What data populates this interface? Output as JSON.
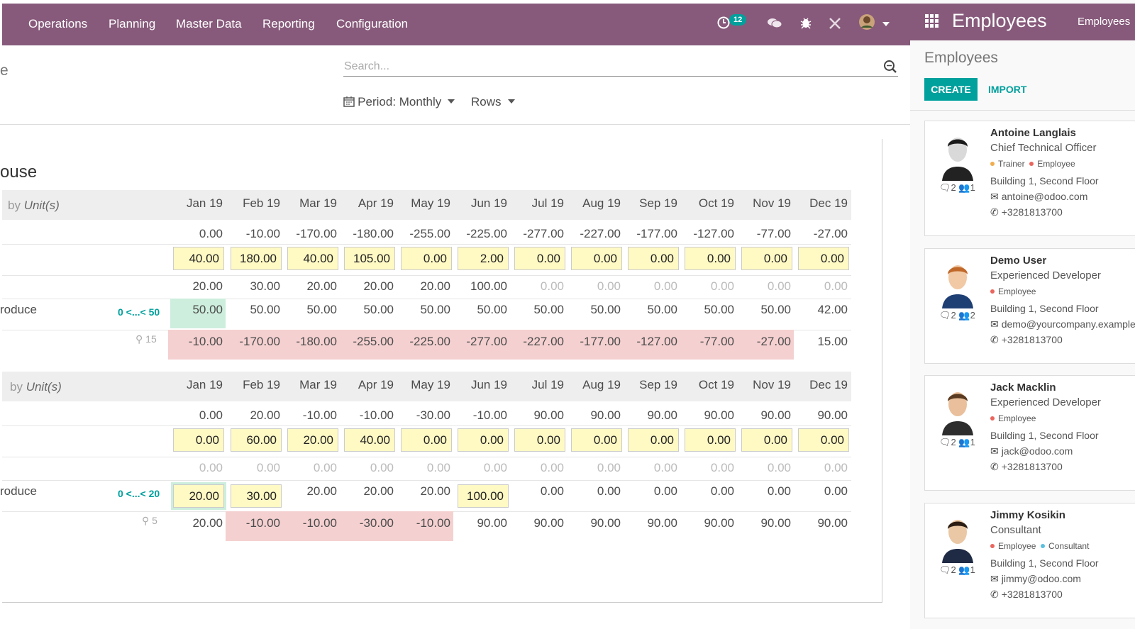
{
  "topnav": {
    "menus": [
      "Operations",
      "Planning",
      "Master Data",
      "Reporting",
      "Configuration"
    ],
    "activity_count": "12"
  },
  "control": {
    "search_placeholder": "Search...",
    "period_label": "Period: Monthly",
    "rows_label": "Rows",
    "left_cut_text": "e"
  },
  "planner": {
    "warehouse_title": "ouse",
    "months": [
      "Jan 19",
      "Feb 19",
      "Mar 19",
      "Apr 19",
      "May 19",
      "Jun 19",
      "Jul 19",
      "Aug 19",
      "Sep 19",
      "Oct 19",
      "Nov 19",
      "Dec 19"
    ],
    "blocks": [
      {
        "uom_prefix": "by",
        "uom_label": "Unit(s)",
        "forecast_row": [
          "0.00",
          "-10.00",
          "-170.00",
          "-180.00",
          "-255.00",
          "-225.00",
          "-277.00",
          "-227.00",
          "-177.00",
          "-127.00",
          "-77.00",
          "-27.00"
        ],
        "demand_row": [
          "40.00",
          "180.00",
          "40.00",
          "105.00",
          "0.00",
          "2.00",
          "0.00",
          "0.00",
          "0.00",
          "0.00",
          "0.00",
          "0.00"
        ],
        "indirect_row": [
          "20.00",
          "30.00",
          "20.00",
          "20.00",
          "20.00",
          "100.00",
          "0.00",
          "0.00",
          "0.00",
          "0.00",
          "0.00",
          "0.00"
        ],
        "produce_label": "roduce",
        "minmax": "0 <...< 50",
        "produce_row": [
          "50.00",
          "50.00",
          "50.00",
          "50.00",
          "50.00",
          "50.00",
          "50.00",
          "50.00",
          "50.00",
          "50.00",
          "50.00",
          "42.00"
        ],
        "safety_value": "15",
        "stock_row": [
          "-10.00",
          "-170.00",
          "-180.00",
          "-255.00",
          "-225.00",
          "-277.00",
          "-227.00",
          "-177.00",
          "-127.00",
          "-77.00",
          "-27.00",
          "15.00"
        ]
      },
      {
        "uom_prefix": "by",
        "uom_label": "Unit(s)",
        "forecast_row": [
          "0.00",
          "20.00",
          "-10.00",
          "-10.00",
          "-30.00",
          "-10.00",
          "90.00",
          "90.00",
          "90.00",
          "90.00",
          "90.00",
          "90.00"
        ],
        "demand_row": [
          "0.00",
          "60.00",
          "20.00",
          "40.00",
          "0.00",
          "0.00",
          "0.00",
          "0.00",
          "0.00",
          "0.00",
          "0.00",
          "0.00"
        ],
        "indirect_row": [
          "0.00",
          "0.00",
          "0.00",
          "0.00",
          "0.00",
          "0.00",
          "0.00",
          "0.00",
          "0.00",
          "0.00",
          "0.00",
          "0.00"
        ],
        "produce_label": "roduce",
        "minmax": "0 <...< 20",
        "produce_row": [
          "20.00",
          "30.00",
          "20.00",
          "20.00",
          "20.00",
          "100.00",
          "0.00",
          "0.00",
          "0.00",
          "0.00",
          "0.00",
          "0.00"
        ],
        "safety_value": "5",
        "stock_row": [
          "20.00",
          "-10.00",
          "-10.00",
          "-30.00",
          "-10.00",
          "90.00",
          "90.00",
          "90.00",
          "90.00",
          "90.00",
          "90.00",
          "90.00"
        ]
      }
    ]
  },
  "right": {
    "app_title": "Employees",
    "menu_first": "Employees",
    "breadcrumb": "Employees",
    "create_label": "CREATE",
    "import_label": "IMPORT",
    "employees": [
      {
        "name": "Antoine Langlais",
        "job": "Chief Technical Officer",
        "tags": [
          "Trainer",
          "Employee"
        ],
        "location": "Building 1, Second Floor",
        "email": "antoine@odoo.com",
        "phone": "+3281813700",
        "messages": "2",
        "followers": "1"
      },
      {
        "name": "Demo User",
        "job": "Experienced Developer",
        "tags": [
          "Employee"
        ],
        "location": "Building 1, Second Floor",
        "email": "demo@yourcompany.example",
        "phone": "+3281813700",
        "messages": "2",
        "followers": "2"
      },
      {
        "name": "Jack Macklin",
        "job": "Experienced Developer",
        "tags": [
          "Employee"
        ],
        "location": "Building 1, Second Floor",
        "email": "jack@odoo.com",
        "phone": "+3281813700",
        "messages": "2",
        "followers": "1"
      },
      {
        "name": "Jimmy Kosikin",
        "job": "Consultant",
        "tags": [
          "Employee",
          "Consultant"
        ],
        "location": "Building 1, Second Floor",
        "email": "jimmy@odoo.com",
        "phone": "+3281813700",
        "messages": "2",
        "followers": "1"
      }
    ],
    "tag_colors": {
      "Trainer": "#f0ad4e",
      "Employee": "#e9665e",
      "Consultant": "#5bc0de"
    }
  }
}
